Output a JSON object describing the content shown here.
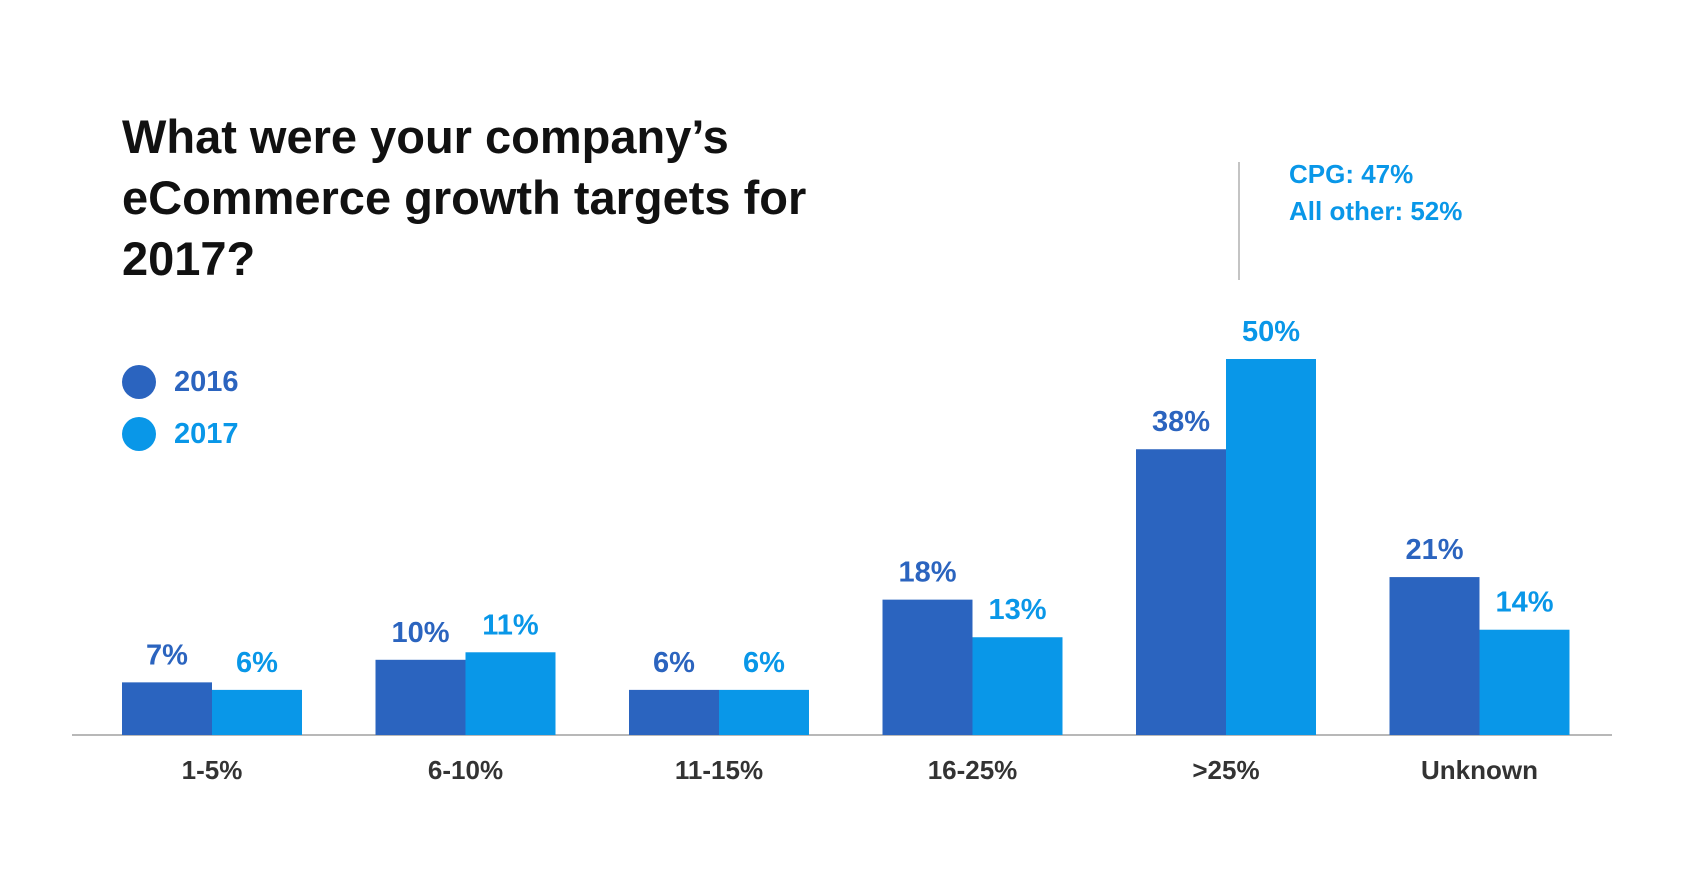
{
  "colors": {
    "series_2016": "#2B64BF",
    "series_2017": "#0997E8",
    "axis": "#b8b8b8",
    "annotation_line": "#c4c4c4",
    "title": "#111111",
    "category_text": "#333333"
  },
  "chart_data": {
    "type": "bar",
    "title": "What were your company’s eCommerce growth targets for 2017?",
    "xlabel": "",
    "ylabel": "",
    "ylim": [
      0,
      50
    ],
    "grid": false,
    "legend_position": "left",
    "categories": [
      "1-5%",
      "6-10%",
      "11-15%",
      "16-25%",
      ">25%",
      "Unknown"
    ],
    "series": [
      {
        "name": "2016",
        "values": [
          7,
          10,
          6,
          18,
          38,
          21
        ],
        "labels": [
          "7%",
          "10%",
          "6%",
          "18%",
          "38%",
          "21%"
        ]
      },
      {
        "name": "2017",
        "values": [
          6,
          11,
          6,
          13,
          50,
          14
        ],
        "labels": [
          "6%",
          "11%",
          "6%",
          "13%",
          "50%",
          "14%"
        ]
      }
    ],
    "annotation": {
      "category": ">25%",
      "series": "2017",
      "lines": [
        "CPG: 47%",
        "All other: 52%"
      ]
    }
  }
}
